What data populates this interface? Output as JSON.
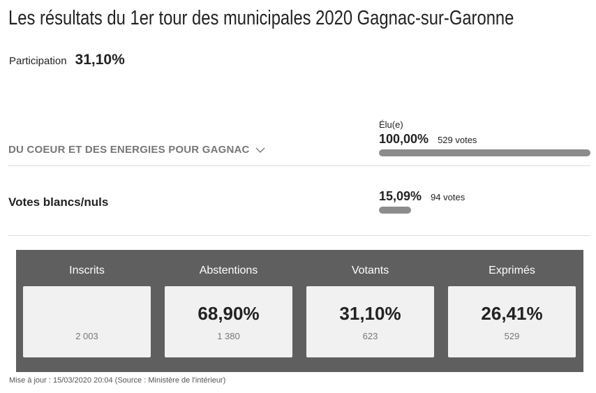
{
  "title": "Les résultats du 1er tour des municipales 2020 Gagnac-sur-Garonne",
  "participation": {
    "label": "Participation",
    "value": "31,10%"
  },
  "lists": [
    {
      "name": "DU COEUR ET DES ENERGIES POUR GAGNAC",
      "status": "Élu(e)",
      "percent": "100,00%",
      "votes": "529 votes",
      "share": 1.0
    }
  ],
  "blank_null": {
    "label": "Votes blancs/nuls",
    "percent": "15,09%",
    "votes": "94 votes",
    "share": 0.1509
  },
  "stats": [
    {
      "label": "Inscrits",
      "percent": "",
      "count": "2 003"
    },
    {
      "label": "Abstentions",
      "percent": "68,90%",
      "count": "1 380"
    },
    {
      "label": "Votants",
      "percent": "31,10%",
      "count": "623"
    },
    {
      "label": "Exprimés",
      "percent": "26,41%",
      "count": "529"
    }
  ],
  "footer": "Mise à jour : 15/03/2020 20:04 (Source : Ministère de l'intérieur)",
  "colors": {
    "bar": "#8c8c8c",
    "stats_bg": "#5f5f5f",
    "stat_box": "#f1f1f1"
  },
  "icons": {
    "expand": "chevron-down-icon"
  }
}
